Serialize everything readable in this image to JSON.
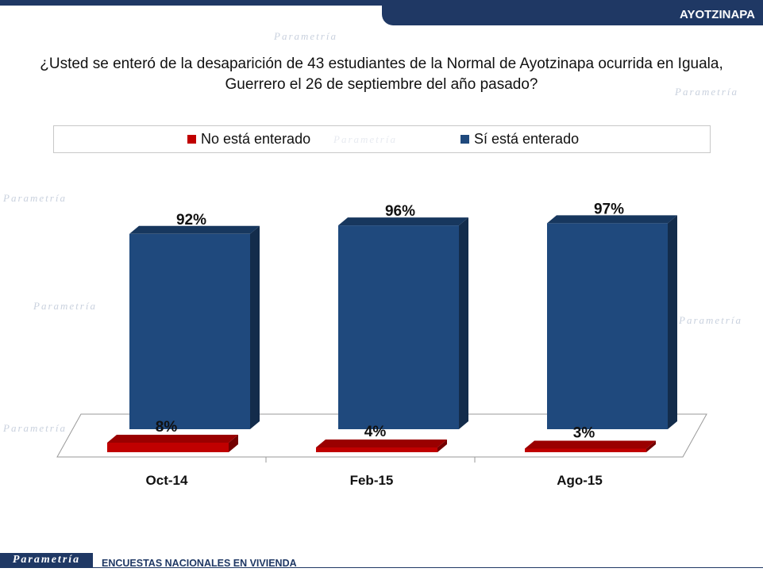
{
  "header": {
    "tag": "AYOTZINAPA"
  },
  "question": {
    "line1": "¿Usted se enteró de la desaparición de 43 estudiantes de la Normal de Ayotzinapa ocurrida en Iguala,",
    "line2": "Guerrero el 26 de septiembre del año pasado?"
  },
  "legend": {
    "items": [
      {
        "label": "No está enterado",
        "color": "#c00000"
      },
      {
        "label": "Sí está enterado",
        "color": "#1f497d"
      }
    ]
  },
  "chart_data": {
    "type": "bar",
    "categories": [
      "Oct-14",
      "Feb-15",
      "Ago-15"
    ],
    "series": [
      {
        "name": "No está enterado",
        "values": [
          8,
          4,
          3
        ],
        "labels": [
          "8%",
          "4%",
          "3%"
        ],
        "color": "#c00000"
      },
      {
        "name": "Sí está enterado",
        "values": [
          92,
          96,
          97
        ],
        "labels": [
          "92%",
          "96%",
          "97%"
        ],
        "color": "#1f497d"
      }
    ],
    "ylim": [
      0,
      100
    ],
    "style": "3d"
  },
  "footer": {
    "logo": "Parametría",
    "text": "ENCUESTAS NACIONALES EN VIVIENDA"
  }
}
